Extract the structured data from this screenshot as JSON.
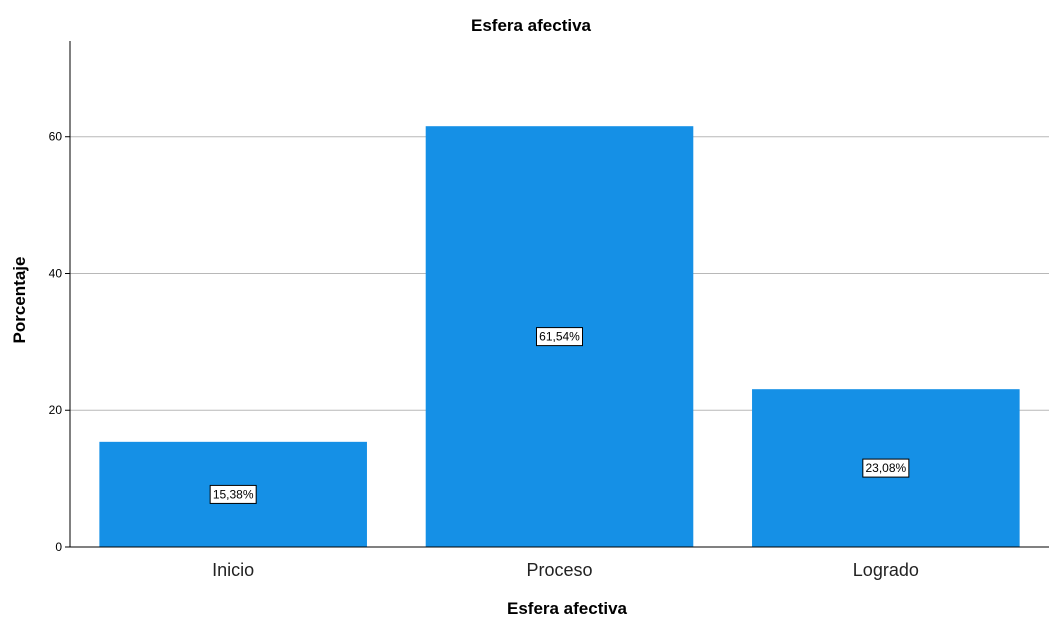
{
  "chart_data": {
    "type": "bar",
    "title": "Esfera afectiva",
    "xlabel": "Esfera afectiva",
    "ylabel": "Porcentaje",
    "categories": [
      "Inicio",
      "Proceso",
      "Logrado"
    ],
    "values": [
      15.38,
      61.54,
      23.08
    ],
    "data_labels": [
      "15,38%",
      "61,54%",
      "23,08%"
    ],
    "ylim": [
      0,
      74
    ],
    "yticks": [
      0,
      20,
      40,
      60
    ],
    "grid": "horizontal",
    "bar_color": "#1590e6"
  }
}
